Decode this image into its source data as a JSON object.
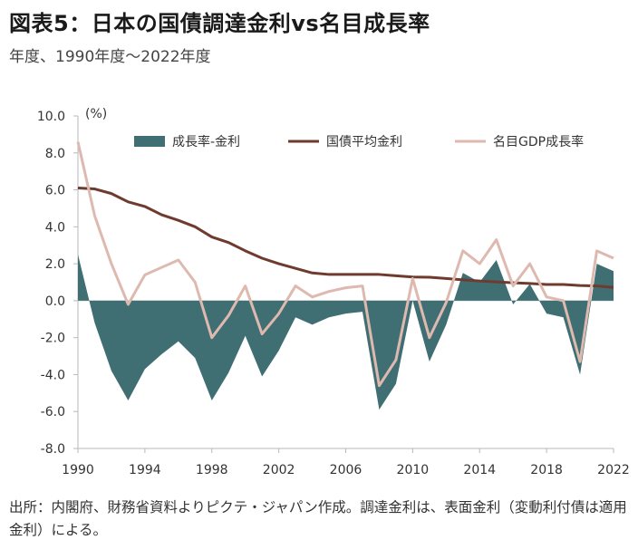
{
  "title": "図表5：日本の国債調達金利vs名目成長率",
  "subtitle": "年度、1990年度～2022年度",
  "note": "出所：内閣府、財務省資料よりピクテ・ジャパン作成。調達金利は、表面金利（変動利付債は適用金利）による。",
  "chart_data": {
    "type": "area",
    "ylabel": "(%)",
    "ylim": [
      -8.0,
      10.0
    ],
    "yticks": [
      "10.0",
      "8.0",
      "6.0",
      "4.0",
      "2.0",
      "0.0",
      "-2.0",
      "-4.0",
      "-6.0",
      "-8.0"
    ],
    "xlim": [
      1990,
      2022
    ],
    "xticks": [
      "1990",
      "1994",
      "1998",
      "2002",
      "2006",
      "2010",
      "2014",
      "2018",
      "2022"
    ],
    "legend_position": "top",
    "x": [
      1990,
      1991,
      1992,
      1993,
      1994,
      1995,
      1996,
      1997,
      1998,
      1999,
      2000,
      2001,
      2002,
      2003,
      2004,
      2005,
      2006,
      2007,
      2008,
      2009,
      2010,
      2011,
      2012,
      2013,
      2014,
      2015,
      2016,
      2017,
      2018,
      2019,
      2020,
      2021,
      2022
    ],
    "series": [
      {
        "name": "成長率-金利",
        "kind": "area",
        "color": "#3f6f73",
        "values": [
          2.5,
          -1.2,
          -3.8,
          -5.4,
          -3.7,
          -2.9,
          -2.2,
          -3.1,
          -5.4,
          -3.9,
          -1.9,
          -4.1,
          -2.7,
          -0.9,
          -1.3,
          -0.9,
          -0.7,
          -0.6,
          -5.9,
          -4.5,
          0.0,
          -3.3,
          -1.3,
          1.5,
          1.0,
          2.2,
          -0.2,
          0.9,
          -0.7,
          -0.9,
          -4.0,
          2.0,
          1.6
        ]
      },
      {
        "name": "国債平均金利",
        "kind": "line",
        "color": "#6e3b2e",
        "values": [
          6.1,
          6.05,
          5.8,
          5.35,
          5.1,
          4.65,
          4.35,
          4.0,
          3.45,
          3.15,
          2.7,
          2.3,
          2.0,
          1.75,
          1.5,
          1.42,
          1.42,
          1.42,
          1.42,
          1.35,
          1.28,
          1.27,
          1.2,
          1.13,
          1.07,
          1.02,
          0.97,
          0.93,
          0.88,
          0.88,
          0.82,
          0.8,
          0.72
        ]
      },
      {
        "name": "名目GDP成長率",
        "kind": "line",
        "color": "#deb9b0",
        "values": [
          8.6,
          4.6,
          2.0,
          -0.2,
          1.4,
          1.8,
          2.2,
          1.0,
          -2.0,
          -0.8,
          0.8,
          -1.8,
          -0.7,
          0.8,
          0.2,
          0.5,
          0.7,
          0.8,
          -4.6,
          -3.2,
          1.2,
          -2.0,
          -0.1,
          2.7,
          2.0,
          3.3,
          0.8,
          2.0,
          0.2,
          0.0,
          -3.3,
          2.7,
          2.3
        ]
      }
    ]
  }
}
